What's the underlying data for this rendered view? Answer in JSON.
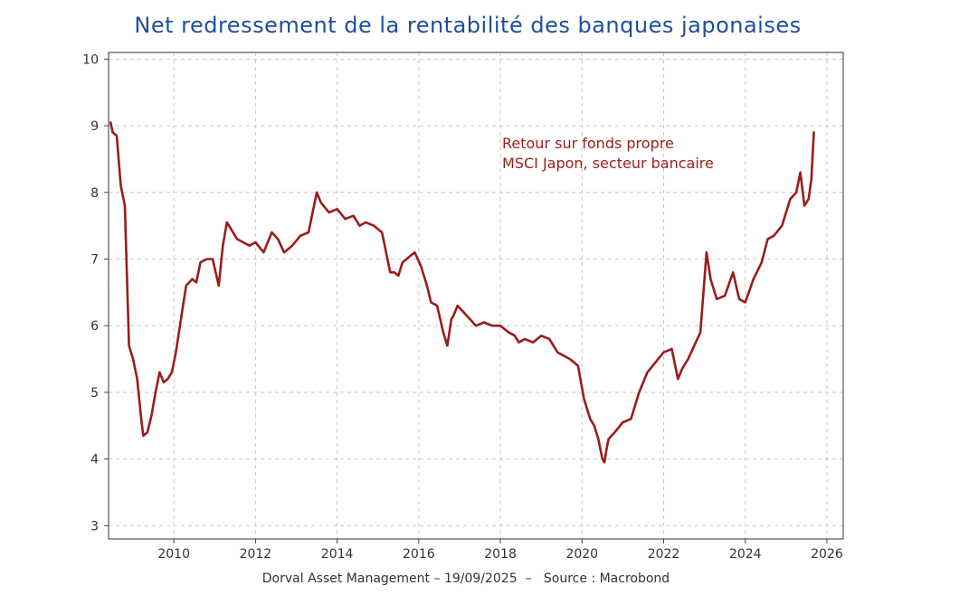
{
  "chart_data": {
    "type": "line",
    "title": "Net redressement de la rentabilité des banques japonaises",
    "xlabel": "",
    "ylabel": "",
    "xlim": [
      2008.4,
      2026.4
    ],
    "ylim": [
      2.8,
      10.1
    ],
    "x_ticks": [
      "2010",
      "2012",
      "2014",
      "2016",
      "2018",
      "2020",
      "2022",
      "2024",
      "2026"
    ],
    "y_ticks": [
      "3",
      "4",
      "5",
      "6",
      "7",
      "8",
      "9",
      "10"
    ],
    "grid": true,
    "annotation": [
      "Retour sur fonds propre",
      "MSCI Japon, secteur bancaire"
    ],
    "series": [
      {
        "name": "Retour sur fonds propre MSCI Japon, secteur bancaire",
        "color": "#9b1c1c",
        "x": [
          2008.45,
          2008.5,
          2008.6,
          2008.7,
          2008.8,
          2008.9,
          2009.0,
          2009.1,
          2009.2,
          2009.25,
          2009.35,
          2009.45,
          2009.55,
          2009.65,
          2009.75,
          2009.85,
          2009.95,
          2010.05,
          2010.15,
          2010.3,
          2010.45,
          2010.55,
          2010.65,
          2010.8,
          2010.95,
          2011.1,
          2011.2,
          2011.3,
          2011.45,
          2011.55,
          2011.7,
          2011.85,
          2012.0,
          2012.2,
          2012.4,
          2012.55,
          2012.7,
          2012.9,
          2013.1,
          2013.3,
          2013.5,
          2013.6,
          2013.8,
          2014.0,
          2014.2,
          2014.4,
          2014.55,
          2014.7,
          2014.9,
          2015.1,
          2015.3,
          2015.4,
          2015.5,
          2015.6,
          2015.8,
          2015.9,
          2016.05,
          2016.2,
          2016.3,
          2016.45,
          2016.6,
          2016.7,
          2016.8,
          2016.85,
          2016.95,
          2017.1,
          2017.25,
          2017.4,
          2017.6,
          2017.8,
          2018.0,
          2018.2,
          2018.35,
          2018.45,
          2018.6,
          2018.8,
          2019.0,
          2019.2,
          2019.4,
          2019.55,
          2019.7,
          2019.9,
          2020.05,
          2020.2,
          2020.3,
          2020.4,
          2020.5,
          2020.55,
          2020.6,
          2020.65,
          2020.8,
          2021.0,
          2021.2,
          2021.4,
          2021.6,
          2021.8,
          2022.0,
          2022.2,
          2022.35,
          2022.45,
          2022.6,
          2022.75,
          2022.9,
          2023.05,
          2023.15,
          2023.3,
          2023.5,
          2023.7,
          2023.85,
          2024.0,
          2024.2,
          2024.4,
          2024.55,
          2024.7,
          2024.9,
          2025.1,
          2025.25,
          2025.35,
          2025.45,
          2025.55,
          2025.62,
          2025.68
        ],
        "y": [
          9.05,
          8.9,
          8.85,
          8.1,
          7.8,
          5.7,
          5.5,
          5.2,
          4.6,
          4.35,
          4.4,
          4.65,
          5.0,
          5.3,
          5.15,
          5.2,
          5.3,
          5.6,
          6.0,
          6.6,
          6.7,
          6.65,
          6.95,
          7.0,
          7.0,
          6.6,
          7.2,
          7.55,
          7.4,
          7.3,
          7.25,
          7.2,
          7.25,
          7.1,
          7.4,
          7.3,
          7.1,
          7.2,
          7.35,
          7.4,
          8.0,
          7.85,
          7.7,
          7.75,
          7.6,
          7.65,
          7.5,
          7.55,
          7.5,
          7.4,
          6.8,
          6.8,
          6.75,
          6.95,
          7.05,
          7.1,
          6.9,
          6.6,
          6.35,
          6.3,
          5.9,
          5.7,
          6.1,
          6.15,
          6.3,
          6.2,
          6.1,
          6.0,
          6.05,
          6.0,
          6.0,
          5.9,
          5.85,
          5.75,
          5.8,
          5.75,
          5.85,
          5.8,
          5.6,
          5.55,
          5.5,
          5.4,
          4.9,
          4.6,
          4.5,
          4.3,
          4.0,
          3.95,
          4.15,
          4.3,
          4.4,
          4.55,
          4.6,
          5.0,
          5.3,
          5.45,
          5.6,
          5.65,
          5.2,
          5.35,
          5.5,
          5.7,
          5.9,
          7.1,
          6.7,
          6.4,
          6.45,
          6.8,
          6.4,
          6.35,
          6.7,
          6.95,
          7.3,
          7.35,
          7.5,
          7.9,
          8.0,
          8.3,
          7.8,
          7.9,
          8.2,
          8.9
        ]
      }
    ]
  },
  "footer": {
    "author": "Dorval Asset Management",
    "date": "19/09/2025",
    "source": "Source : Macrobond"
  }
}
